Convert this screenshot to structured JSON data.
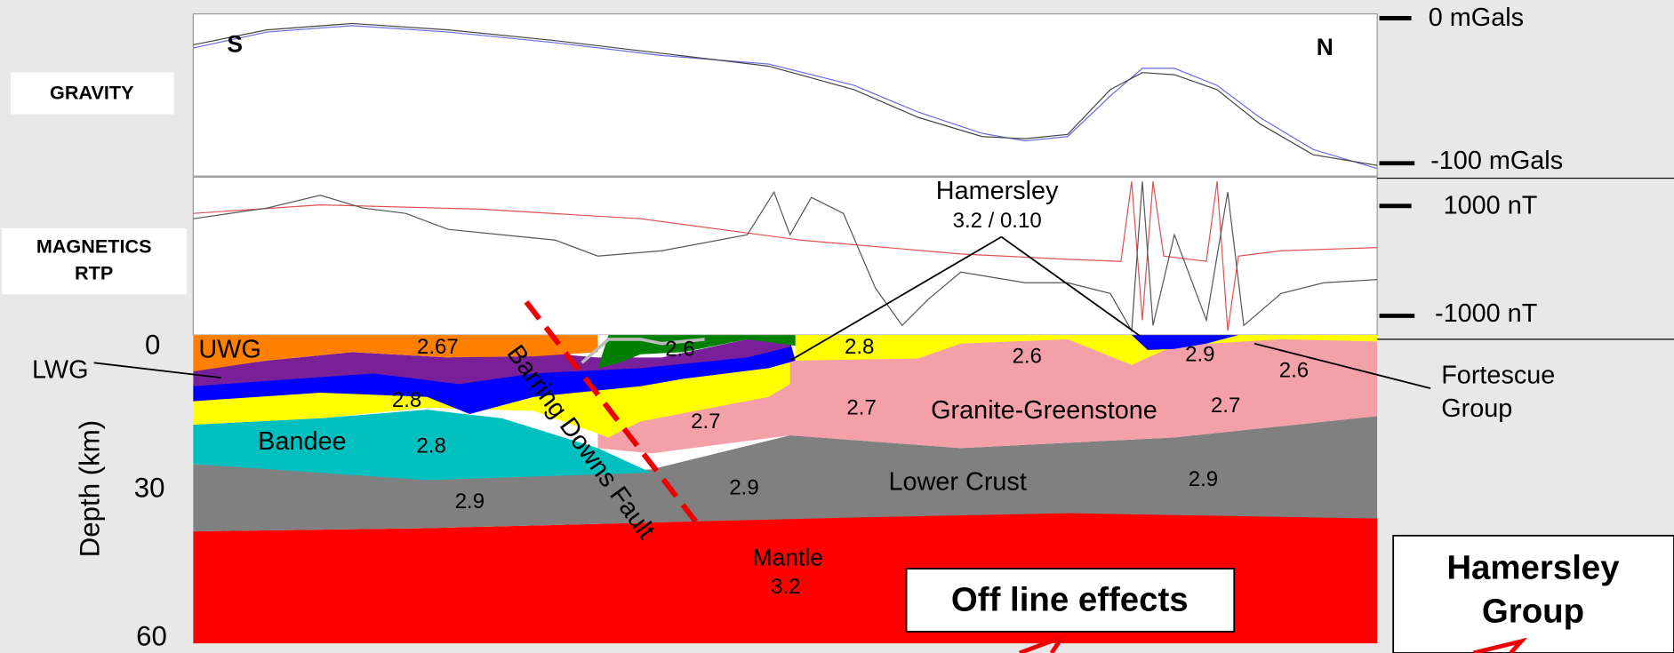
{
  "panels": {
    "gravity": "GRAVITY",
    "magnetics": [
      "MAGNETICS",
      "RTP"
    ]
  },
  "directions": {
    "south": "S",
    "north": "N"
  },
  "scales": {
    "gravity_top": "0 mGals",
    "gravity_bottom": "-100 mGals",
    "magnetics_top": "1000 nT",
    "magnetics_bottom": "-1000 nT"
  },
  "depth_axis": {
    "label": "Depth (km)",
    "ticks": [
      "0",
      "30",
      "60"
    ]
  },
  "callouts": {
    "hamersley": [
      "Hamersley",
      "3.2 / 0.10"
    ],
    "lwg": "LWG",
    "fortescue": [
      "Fortescue",
      "Group"
    ]
  },
  "units": {
    "uwg": "UWG",
    "bandee": "Bandee",
    "granite": "Granite-Greenstone",
    "lower_crust": "Lower Crust",
    "mantle": [
      "Mantle",
      "3.2"
    ],
    "fault": "Barring Downs Fault"
  },
  "densities": [
    "2.67",
    "2.6",
    "2.8",
    "2.6",
    "2.9",
    "2.6",
    "2.8",
    "2.7",
    "2.7",
    "2.7",
    "2.8",
    "2.9",
    "2.9",
    "2.9"
  ],
  "boxes": {
    "off_line": "Off line effects",
    "hamersley_group": [
      "Hamersley",
      "Group"
    ]
  }
}
